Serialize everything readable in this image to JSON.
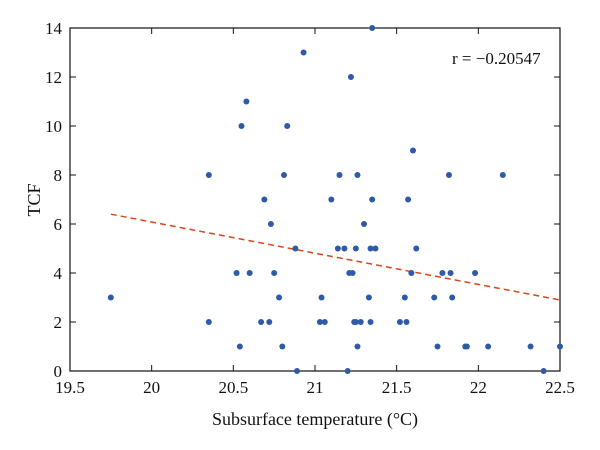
{
  "chart_data": {
    "type": "scatter",
    "xlabel": "Subsurface temperature (°C)",
    "ylabel": "TCF",
    "annotation": "r = −0.20547",
    "xlim": [
      19.5,
      22.5
    ],
    "ylim": [
      0,
      14
    ],
    "xticks": [
      "19.5",
      "20",
      "20.5",
      "21",
      "21.5",
      "22",
      "22.5"
    ],
    "yticks": [
      "0",
      "2",
      "4",
      "6",
      "8",
      "10",
      "12",
      "14"
    ],
    "xtick_values": [
      19.5,
      20,
      20.5,
      21,
      21.5,
      22,
      22.5
    ],
    "ytick_values": [
      0,
      2,
      4,
      6,
      8,
      10,
      12,
      14
    ],
    "grid": false,
    "point_color": "#2e5aa8",
    "trend_color": "#d9481c",
    "trendline": {
      "x": [
        19.75,
        22.5
      ],
      "y": [
        6.4,
        2.9
      ]
    },
    "points": [
      [
        19.75,
        3
      ],
      [
        20.35,
        8
      ],
      [
        20.35,
        2
      ],
      [
        20.52,
        4
      ],
      [
        20.54,
        1
      ],
      [
        20.55,
        10
      ],
      [
        20.58,
        11
      ],
      [
        20.6,
        4
      ],
      [
        20.67,
        2
      ],
      [
        20.69,
        7
      ],
      [
        20.72,
        2
      ],
      [
        20.73,
        6
      ],
      [
        20.75,
        4
      ],
      [
        20.78,
        3
      ],
      [
        20.8,
        1
      ],
      [
        20.81,
        8
      ],
      [
        20.83,
        10
      ],
      [
        20.88,
        5
      ],
      [
        20.89,
        0
      ],
      [
        20.93,
        13
      ],
      [
        21.03,
        2
      ],
      [
        21.04,
        3
      ],
      [
        21.06,
        2
      ],
      [
        21.1,
        7
      ],
      [
        21.14,
        5
      ],
      [
        21.15,
        8
      ],
      [
        21.18,
        5
      ],
      [
        21.2,
        0
      ],
      [
        21.21,
        4
      ],
      [
        21.22,
        12
      ],
      [
        21.23,
        4
      ],
      [
        21.24,
        2
      ],
      [
        21.25,
        2
      ],
      [
        21.25,
        5
      ],
      [
        21.26,
        1
      ],
      [
        21.26,
        8
      ],
      [
        21.28,
        2
      ],
      [
        21.3,
        6
      ],
      [
        21.33,
        3
      ],
      [
        21.34,
        2
      ],
      [
        21.34,
        5
      ],
      [
        21.35,
        7
      ],
      [
        21.35,
        14
      ],
      [
        21.37,
        5
      ],
      [
        21.52,
        2
      ],
      [
        21.55,
        3
      ],
      [
        21.56,
        2
      ],
      [
        21.57,
        7
      ],
      [
        21.59,
        4
      ],
      [
        21.6,
        9
      ],
      [
        21.62,
        5
      ],
      [
        21.73,
        3
      ],
      [
        21.75,
        1
      ],
      [
        21.78,
        4
      ],
      [
        21.82,
        8
      ],
      [
        21.83,
        4
      ],
      [
        21.84,
        3
      ],
      [
        21.92,
        1
      ],
      [
        21.93,
        1
      ],
      [
        21.98,
        4
      ],
      [
        22.06,
        1
      ],
      [
        22.15,
        8
      ],
      [
        22.32,
        1
      ],
      [
        22.4,
        0
      ],
      [
        22.5,
        1
      ]
    ]
  }
}
